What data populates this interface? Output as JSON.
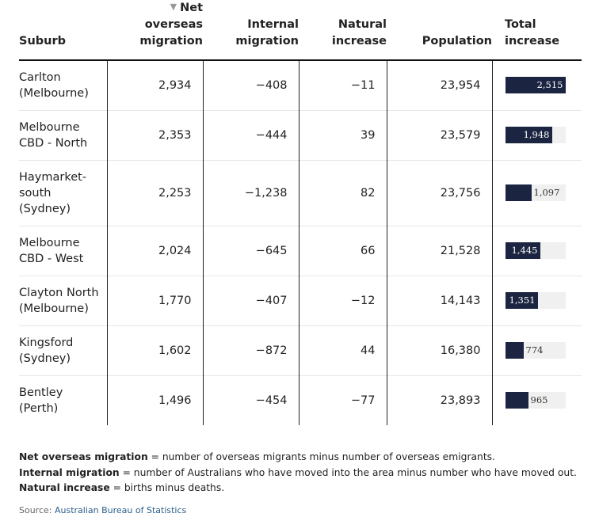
{
  "table": {
    "columns": [
      {
        "key": "suburb",
        "label": [
          "Suburb"
        ]
      },
      {
        "key": "net_overseas",
        "label": [
          "Net",
          "overseas",
          "migration"
        ],
        "sorted": "desc"
      },
      {
        "key": "internal",
        "label": [
          "Internal",
          "migration"
        ]
      },
      {
        "key": "natural",
        "label": [
          "Natural",
          "increase"
        ]
      },
      {
        "key": "population",
        "label": [
          "Population"
        ]
      },
      {
        "key": "total",
        "label": [
          "Total",
          "increase"
        ]
      }
    ],
    "bar_max": 2515,
    "bar_color": "#1b2541",
    "bar_track_color": "#f0f0f0",
    "rows": [
      {
        "suburb": [
          "Carlton",
          "(Melbourne)"
        ],
        "net_overseas": "2,934",
        "internal": "−408",
        "natural": "−11",
        "population": "23,954",
        "total": "2,515",
        "total_value": 2515
      },
      {
        "suburb": [
          "Melbourne",
          "CBD - North"
        ],
        "net_overseas": "2,353",
        "internal": "−444",
        "natural": "39",
        "population": "23,579",
        "total": "1,948",
        "total_value": 1948
      },
      {
        "suburb": [
          "Haymarket-",
          "south",
          "(Sydney)"
        ],
        "net_overseas": "2,253",
        "internal": "−1,238",
        "natural": "82",
        "population": "23,756",
        "total": "1,097",
        "total_value": 1097
      },
      {
        "suburb": [
          "Melbourne",
          "CBD - West"
        ],
        "net_overseas": "2,024",
        "internal": "−645",
        "natural": "66",
        "population": "21,528",
        "total": "1,445",
        "total_value": 1445
      },
      {
        "suburb": [
          "Clayton North",
          "(Melbourne)"
        ],
        "net_overseas": "1,770",
        "internal": "−407",
        "natural": "−12",
        "population": "14,143",
        "total": "1,351",
        "total_value": 1351
      },
      {
        "suburb": [
          "Kingsford",
          "(Sydney)"
        ],
        "net_overseas": "1,602",
        "internal": "−872",
        "natural": "44",
        "population": "16,380",
        "total": "774",
        "total_value": 774
      },
      {
        "suburb": [
          "Bentley",
          "(Perth)"
        ],
        "net_overseas": "1,496",
        "internal": "−454",
        "natural": "−77",
        "population": "23,893",
        "total": "965",
        "total_value": 965
      }
    ]
  },
  "notes": [
    {
      "term": "Net overseas migration",
      "definition": " = number of overseas migrants minus number of overseas emigrants."
    },
    {
      "term": "Internal migration",
      "definition": " = number of Australians who have moved into the area minus number who have moved out."
    },
    {
      "term": "Natural increase",
      "definition": " = births minus deaths."
    }
  ],
  "source": {
    "prefix": "Source: ",
    "link_text": "Australian Bureau of Statistics"
  }
}
